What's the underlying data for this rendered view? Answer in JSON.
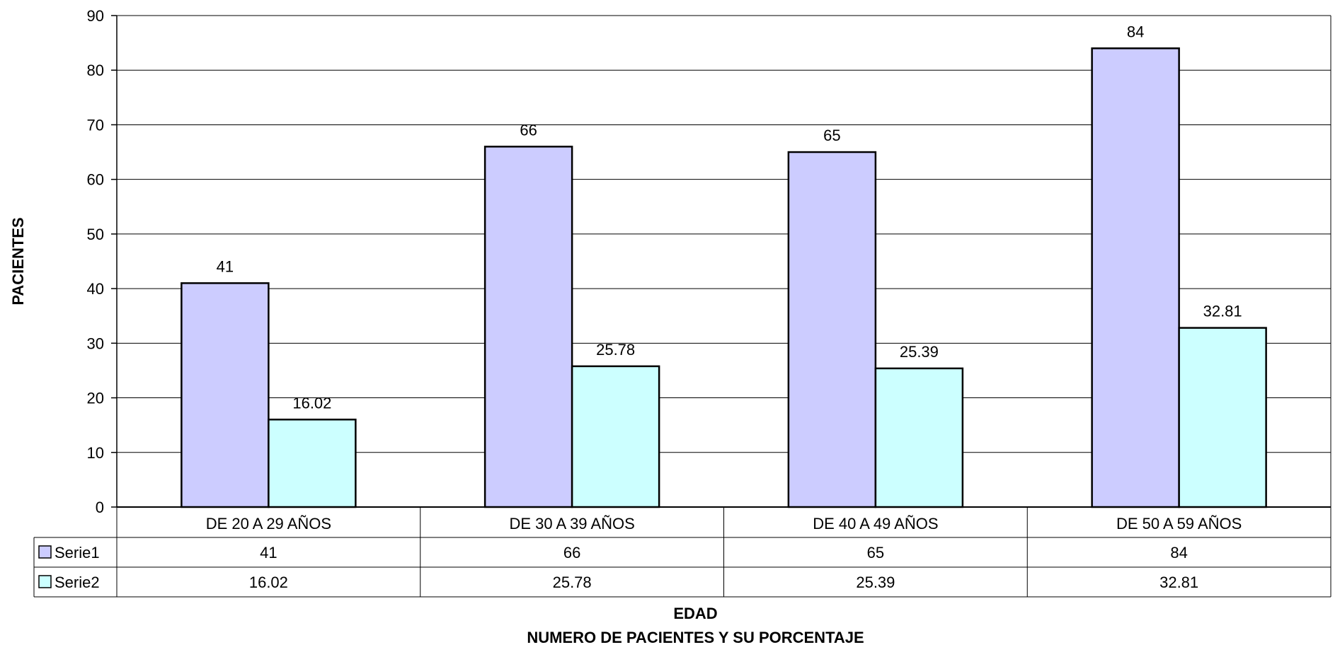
{
  "chart_data": {
    "type": "bar",
    "categories": [
      "DE 20 A 29 AÑOS",
      "DE 30 A 39 AÑOS",
      "DE 40 A 49 AÑOS",
      "DE 50 A 59 AÑOS"
    ],
    "series": [
      {
        "name": "Serie1",
        "values": [
          41,
          66,
          65,
          84
        ],
        "labels": [
          "41",
          "66",
          "65",
          "84"
        ],
        "color": "#CCCCFF"
      },
      {
        "name": "Serie2",
        "values": [
          16.02,
          25.78,
          25.39,
          32.81
        ],
        "labels": [
          "16.02",
          "25.78",
          "25.39",
          "32.81"
        ],
        "color": "#CCFFFF"
      }
    ],
    "ylim": [
      0,
      90
    ],
    "yticks": [
      0,
      10,
      20,
      30,
      40,
      50,
      60,
      70,
      80,
      90
    ],
    "ylabel": "PACIENTES",
    "xlabel": "EDAD",
    "subtitle": "NUMERO DE PACIENTES Y SU PORCENTAJE",
    "grid": true,
    "legend": "data-table"
  }
}
